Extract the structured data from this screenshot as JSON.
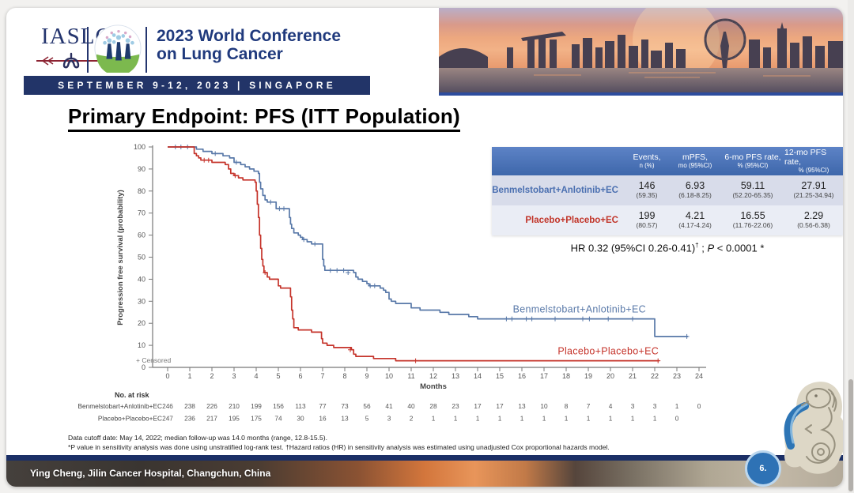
{
  "header": {
    "iaslc": "IASLC",
    "conference_line1": "2023 World Conference",
    "conference_line2": "on Lung Cancer",
    "banner": "SEPTEMBER 9-12, 2023 | SINGAPORE"
  },
  "title": "Primary Endpoint: PFS (ITT Population)",
  "results_table": {
    "headers": [
      {
        "line1": "Events,",
        "line2": "n (%)"
      },
      {
        "line1": "mPFS,",
        "line2": "mo (95%CI)"
      },
      {
        "line1": "6-mo PFS rate,",
        "line2": "% (95%CI)"
      },
      {
        "line1": "12-mo PFS rate,",
        "line2": "% (95%CI)"
      }
    ],
    "rows": [
      {
        "label": "Benmelstobart+Anlotinib+EC",
        "cells": [
          {
            "v": "146",
            "ci": "(59.35)"
          },
          {
            "v": "6.93",
            "ci": "(6.18-8.25)"
          },
          {
            "v": "59.11",
            "ci": "(52.20-65.35)"
          },
          {
            "v": "27.91",
            "ci": "(21.25-34.94)"
          }
        ]
      },
      {
        "label": "Placebo+Placebo+EC",
        "cells": [
          {
            "v": "199",
            "ci": "(80.57)"
          },
          {
            "v": "4.21",
            "ci": "(4.17-4.24)"
          },
          {
            "v": "16.55",
            "ci": "(11.76-22.06)"
          },
          {
            "v": "2.29",
            "ci": "(0.56-6.38)"
          }
        ]
      }
    ],
    "hr_line": {
      "prefix": "HR 0.32 (95%CI 0.26-0.41)",
      "sup": "†",
      "mid": " ; ",
      "p_italic": "P",
      "rest": " < 0.0001 *"
    }
  },
  "chart_data": {
    "type": "line",
    "subtype": "kaplan-meier-step",
    "xlabel": "Months",
    "ylabel": "Progression free survival (probability)",
    "x_ticks": [
      0,
      1,
      2,
      3,
      4,
      5,
      6,
      7,
      8,
      9,
      10,
      11,
      12,
      13,
      14,
      15,
      16,
      17,
      18,
      19,
      20,
      21,
      22,
      23,
      24
    ],
    "y_ticks": [
      0,
      10,
      20,
      30,
      40,
      50,
      60,
      70,
      80,
      90,
      100
    ],
    "xlim": [
      0,
      24
    ],
    "ylim": [
      0,
      100
    ],
    "censored_label": "+ Censored",
    "series": [
      {
        "name": "Benmelstobart+Anlotinib+EC",
        "color": "#5878a8",
        "label_x": 18.6,
        "label_y": 25,
        "end": 23.5,
        "points": [
          [
            0,
            100
          ],
          [
            1.3,
            99
          ],
          [
            1.6,
            98
          ],
          [
            2.0,
            97
          ],
          [
            2.5,
            96
          ],
          [
            2.8,
            95
          ],
          [
            3.0,
            93
          ],
          [
            3.3,
            92
          ],
          [
            3.5,
            91
          ],
          [
            3.7,
            90
          ],
          [
            3.9,
            89
          ],
          [
            4.1,
            88
          ],
          [
            4.15,
            84
          ],
          [
            4.2,
            81
          ],
          [
            4.3,
            78
          ],
          [
            4.4,
            76
          ],
          [
            4.5,
            75
          ],
          [
            4.9,
            72
          ],
          [
            5.5,
            68
          ],
          [
            5.55,
            65
          ],
          [
            5.6,
            63
          ],
          [
            5.7,
            61
          ],
          [
            5.9,
            60
          ],
          [
            6.0,
            59
          ],
          [
            6.1,
            58
          ],
          [
            6.3,
            57
          ],
          [
            6.5,
            56
          ],
          [
            7.0,
            49
          ],
          [
            7.05,
            46
          ],
          [
            7.1,
            44
          ],
          [
            8.4,
            43
          ],
          [
            8.5,
            41
          ],
          [
            8.6,
            40
          ],
          [
            8.8,
            39
          ],
          [
            9.0,
            38
          ],
          [
            9.1,
            37
          ],
          [
            9.6,
            36
          ],
          [
            9.75,
            35
          ],
          [
            9.85,
            34
          ],
          [
            10.0,
            31
          ],
          [
            10.1,
            30
          ],
          [
            10.3,
            29
          ],
          [
            11.0,
            27
          ],
          [
            11.4,
            26
          ],
          [
            12.3,
            25
          ],
          [
            12.7,
            24
          ],
          [
            13.6,
            23
          ],
          [
            14.0,
            22
          ],
          [
            22.0,
            14
          ]
        ],
        "censors": [
          [
            0.35,
            100
          ],
          [
            0.6,
            100
          ],
          [
            0.9,
            100
          ],
          [
            2.15,
            97
          ],
          [
            3.1,
            93
          ],
          [
            4.65,
            75
          ],
          [
            5.05,
            72
          ],
          [
            5.25,
            72
          ],
          [
            6.15,
            58
          ],
          [
            6.65,
            56
          ],
          [
            7.35,
            44
          ],
          [
            7.65,
            44
          ],
          [
            7.95,
            44
          ],
          [
            8.15,
            43
          ],
          [
            9.15,
            37
          ],
          [
            9.35,
            37
          ],
          [
            15.3,
            22
          ],
          [
            15.55,
            22
          ],
          [
            16.2,
            22
          ],
          [
            16.45,
            22
          ],
          [
            17.5,
            22
          ],
          [
            18.75,
            22
          ],
          [
            19.05,
            22
          ],
          [
            19.9,
            22
          ],
          [
            21.0,
            22
          ],
          [
            23.45,
            14
          ]
        ]
      },
      {
        "name": "Placebo+Placebo+EC",
        "color": "#c5332a",
        "label_x": 19.9,
        "label_y": 6,
        "end": 22.2,
        "points": [
          [
            0,
            100
          ],
          [
            1.2,
            97
          ],
          [
            1.3,
            96
          ],
          [
            1.4,
            95
          ],
          [
            1.5,
            94
          ],
          [
            2.0,
            93
          ],
          [
            2.6,
            92
          ],
          [
            2.75,
            90
          ],
          [
            2.85,
            88
          ],
          [
            3.0,
            87
          ],
          [
            3.2,
            86
          ],
          [
            3.4,
            85
          ],
          [
            3.95,
            84
          ],
          [
            4.0,
            80
          ],
          [
            4.05,
            74
          ],
          [
            4.1,
            68
          ],
          [
            4.15,
            60
          ],
          [
            4.2,
            54
          ],
          [
            4.25,
            49
          ],
          [
            4.3,
            46
          ],
          [
            4.35,
            43
          ],
          [
            4.5,
            41
          ],
          [
            4.6,
            40
          ],
          [
            5.0,
            37
          ],
          [
            5.1,
            36
          ],
          [
            5.55,
            32
          ],
          [
            5.6,
            26
          ],
          [
            5.65,
            22
          ],
          [
            5.7,
            18
          ],
          [
            5.9,
            17
          ],
          [
            6.5,
            16
          ],
          [
            6.95,
            13
          ],
          [
            7.0,
            11
          ],
          [
            7.2,
            10
          ],
          [
            7.5,
            9
          ],
          [
            8.3,
            8
          ],
          [
            8.4,
            6
          ],
          [
            8.5,
            5
          ],
          [
            9.3,
            4
          ],
          [
            10.3,
            3
          ]
        ],
        "censors": [
          [
            1.65,
            94
          ],
          [
            1.85,
            94
          ],
          [
            3.05,
            87
          ],
          [
            4.4,
            43
          ],
          [
            8.25,
            8
          ],
          [
            11.2,
            3
          ],
          [
            22.15,
            3
          ]
        ]
      }
    ],
    "at_risk": {
      "title": "No. at risk",
      "rows": [
        {
          "label": "Benmelstobart+Anlotinib+EC",
          "values": [
            246,
            238,
            226,
            210,
            199,
            156,
            113,
            77,
            73,
            56,
            41,
            40,
            28,
            23,
            17,
            17,
            13,
            10,
            8,
            7,
            4,
            3,
            3,
            1,
            0
          ]
        },
        {
          "label": "Placebo+Placebo+EC",
          "values": [
            247,
            236,
            217,
            195,
            175,
            74,
            30,
            16,
            13,
            5,
            3,
            2,
            1,
            1,
            1,
            1,
            1,
            1,
            1,
            1,
            1,
            1,
            1,
            0
          ]
        }
      ]
    }
  },
  "footnotes": {
    "line1": "Data cutoff date: May 14, 2022; median follow-up was 14.0 months (range, 12.8-15.5).",
    "line2": "*P value in sensitivity analysis was done using unstratified log-rank test. †Hazard ratios (HR) in sensitivity analysis was estimated using unadjusted Cox proportional hazards model."
  },
  "footer": {
    "credit": "Ying Cheng, Jilin Cancer Hospital, Changchun, China",
    "page": "6."
  },
  "colors": {
    "navy": "#223468",
    "table_header_blue": "#4a72b6",
    "arm1_blue": "#4a6fb0",
    "arm2_red": "#c13428",
    "page_badge_blue": "#2e72b5"
  }
}
